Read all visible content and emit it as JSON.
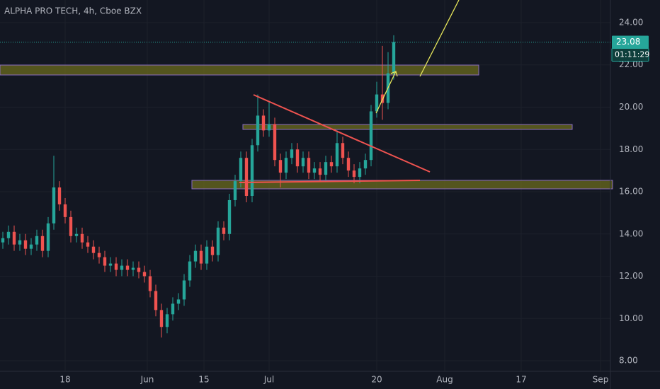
{
  "chart_data": {
    "type": "candlestick",
    "title": "ALPHA PRO TECH, 4h, Cboe BZX",
    "x": [
      1,
      3,
      5,
      7,
      9,
      11,
      13,
      15,
      17,
      19,
      21,
      23,
      25,
      27,
      29,
      31,
      33,
      35,
      37,
      39,
      41,
      43,
      45,
      47,
      49,
      51,
      53,
      55,
      57,
      59,
      61,
      63,
      65,
      67,
      69,
      71,
      73,
      75,
      77,
      79,
      81,
      83,
      85,
      87,
      89,
      91,
      93,
      95,
      97,
      99,
      101,
      103,
      105,
      107,
      109,
      111,
      113,
      115,
      117,
      119,
      121,
      123,
      125,
      127,
      129,
      131,
      133,
      135,
      137,
      139
    ],
    "open": [
      13.6,
      13.8,
      14.1,
      13.5,
      13.7,
      13.3,
      13.5,
      13.9,
      13.2,
      14.5,
      16.2,
      15.4,
      14.8,
      13.9,
      14.0,
      13.6,
      13.4,
      13.1,
      12.9,
      12.5,
      12.6,
      12.3,
      12.5,
      12.3,
      12.4,
      12.2,
      12.0,
      11.3,
      10.4,
      9.6,
      10.2,
      10.7,
      10.9,
      11.8,
      12.7,
      13.2,
      12.6,
      13.4,
      13.0,
      14.3,
      14.0,
      15.6,
      16.5,
      17.6,
      15.8,
      18.2,
      19.6,
      18.9,
      19.2,
      17.5,
      16.9,
      17.6,
      18.0,
      17.2,
      17.6,
      16.9,
      17.1,
      16.8,
      17.4,
      17.2,
      18.3,
      17.6,
      17.0,
      16.7,
      17.1,
      17.5,
      19.8,
      20.6,
      20.2,
      21.6
    ],
    "high": [
      14.1,
      14.4,
      14.4,
      14.0,
      14.0,
      13.8,
      14.2,
      14.2,
      14.8,
      17.7,
      16.5,
      15.7,
      15.1,
      14.3,
      14.3,
      13.9,
      13.7,
      13.4,
      13.2,
      12.9,
      12.9,
      12.8,
      12.8,
      12.7,
      12.7,
      12.5,
      12.3,
      11.6,
      10.7,
      10.5,
      11.0,
      11.2,
      12.1,
      13.0,
      13.5,
      13.5,
      13.7,
      13.7,
      14.6,
      14.6,
      15.9,
      16.8,
      17.9,
      17.9,
      18.5,
      20.6,
      19.9,
      20.3,
      19.5,
      17.8,
      17.9,
      18.3,
      18.3,
      17.9,
      17.9,
      17.4,
      17.4,
      17.7,
      17.7,
      18.9,
      18.6,
      17.9,
      17.3,
      17.4,
      17.8,
      20.1,
      21.2,
      22.9,
      22.6,
      23.4
    ],
    "low": [
      13.3,
      13.5,
      13.2,
      13.2,
      13.0,
      13.0,
      13.2,
      12.9,
      12.9,
      14.2,
      15.1,
      14.5,
      13.6,
      13.6,
      13.3,
      13.1,
      12.8,
      12.6,
      12.2,
      12.2,
      12.0,
      12.0,
      12.0,
      12.0,
      11.9,
      11.7,
      11.0,
      10.1,
      9.1,
      9.3,
      9.9,
      10.4,
      10.6,
      11.5,
      12.4,
      12.3,
      12.3,
      12.7,
      12.7,
      13.7,
      13.7,
      15.3,
      16.2,
      15.5,
      15.5,
      17.9,
      18.6,
      18.6,
      17.2,
      16.2,
      16.6,
      17.3,
      16.9,
      16.9,
      16.6,
      16.6,
      16.5,
      16.5,
      16.9,
      16.9,
      17.3,
      16.7,
      16.4,
      16.4,
      16.8,
      17.2,
      19.5,
      19.4,
      19.9,
      21.3
    ],
    "close": [
      13.8,
      14.1,
      13.5,
      13.7,
      13.3,
      13.5,
      13.9,
      13.2,
      14.5,
      16.2,
      15.4,
      14.8,
      13.9,
      14.0,
      13.6,
      13.4,
      13.1,
      12.9,
      12.5,
      12.6,
      12.3,
      12.5,
      12.3,
      12.4,
      12.2,
      12.0,
      11.3,
      10.4,
      9.6,
      10.2,
      10.7,
      10.9,
      11.8,
      12.7,
      13.2,
      12.6,
      13.4,
      13.0,
      14.3,
      14.0,
      15.6,
      16.5,
      17.6,
      15.8,
      18.2,
      19.6,
      18.9,
      19.2,
      17.5,
      16.9,
      17.6,
      18.0,
      17.2,
      17.6,
      16.9,
      17.1,
      16.8,
      17.4,
      17.2,
      18.3,
      17.6,
      17.0,
      16.7,
      17.1,
      17.5,
      19.8,
      20.6,
      20.2,
      21.6,
      23.08
    ],
    "up_color": "#26a69a",
    "down_color": "#ef5350",
    "xlim": [
      0,
      215.5
    ],
    "xticks": [
      {
        "value": 23,
        "label": "18"
      },
      {
        "value": 52,
        "label": "Jun"
      },
      {
        "value": 72,
        "label": "15"
      },
      {
        "value": 95,
        "label": "Jul"
      },
      {
        "value": 133,
        "label": "20"
      },
      {
        "value": 157,
        "label": "Aug"
      },
      {
        "value": 184,
        "label": "17"
      },
      {
        "value": 212,
        "label": "Sep"
      }
    ],
    "ylim": [
      7.5,
      25.07
    ],
    "yticks": [
      {
        "value": 8,
        "label": "8.00"
      },
      {
        "value": 10,
        "label": "10.00"
      },
      {
        "value": 12,
        "label": "12.00"
      },
      {
        "value": 14,
        "label": "14.00"
      },
      {
        "value": 16,
        "label": "16.00"
      },
      {
        "value": 18,
        "label": "18.00"
      },
      {
        "value": 20,
        "label": "20.00"
      },
      {
        "value": 22,
        "label": "22.00"
      },
      {
        "value": 24,
        "label": "24.00"
      }
    ],
    "grid": true,
    "last_price": 23.08,
    "countdown": "01:11:29"
  }
}
